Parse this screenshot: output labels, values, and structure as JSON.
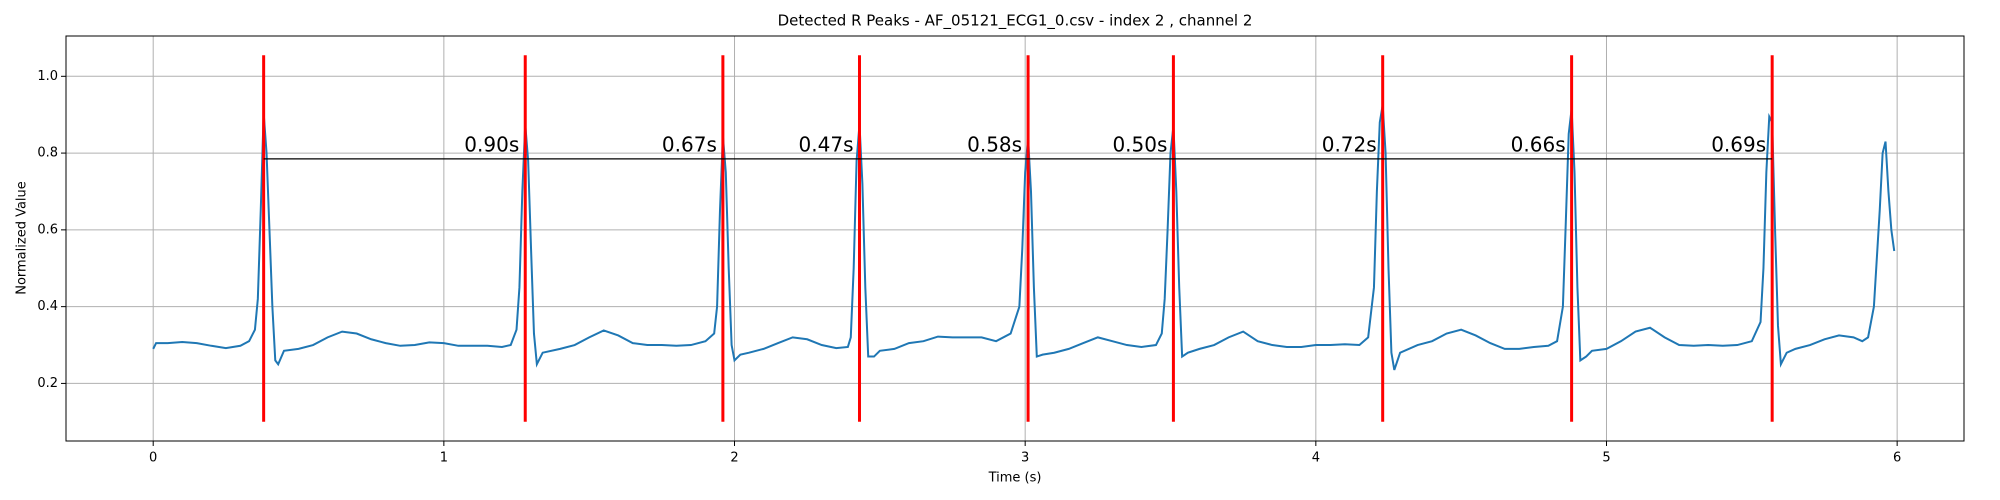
{
  "chart_data": {
    "type": "line",
    "title": "Detected R Peaks - AF_05121_ECG1_0.csv - index 2 , channel 2",
    "xlabel": "Time (s)",
    "ylabel": "Normalized Value",
    "color": "#1f77b4",
    "grid": true,
    "xlim": [
      -0.3,
      6.23
    ],
    "ylim": [
      0.05,
      1.105
    ],
    "xticks": [
      0,
      1,
      2,
      3,
      4,
      5,
      6
    ],
    "yticks": [
      0.2,
      0.4,
      0.6,
      0.8,
      {
        "value": 1,
        "label": "1.0"
      }
    ],
    "x": [
      0,
      0.01,
      0.05,
      0.1,
      0.15,
      0.2,
      0.25,
      0.3,
      0.33,
      0.35,
      0.36,
      0.37,
      0.38,
      0.39,
      0.4,
      0.41,
      0.42,
      0.43,
      0.45,
      0.5,
      0.55,
      0.6,
      0.65,
      0.7,
      0.75,
      0.8,
      0.85,
      0.9,
      0.95,
      1.0,
      1.05,
      1.1,
      1.15,
      1.2,
      1.23,
      1.25,
      1.26,
      1.27,
      1.28,
      1.29,
      1.3,
      1.31,
      1.32,
      1.34,
      1.4,
      1.45,
      1.5,
      1.55,
      1.6,
      1.65,
      1.7,
      1.75,
      1.8,
      1.85,
      1.9,
      1.93,
      1.94,
      1.95,
      1.96,
      1.97,
      1.98,
      1.99,
      2.0,
      2.02,
      2.05,
      2.1,
      2.15,
      2.2,
      2.25,
      2.3,
      2.35,
      2.39,
      2.4,
      2.41,
      2.42,
      2.43,
      2.44,
      2.45,
      2.46,
      2.48,
      2.5,
      2.55,
      2.6,
      2.65,
      2.7,
      2.75,
      2.8,
      2.85,
      2.9,
      2.95,
      2.98,
      2.99,
      3.0,
      3.01,
      3.02,
      3.03,
      3.04,
      3.06,
      3.1,
      3.15,
      3.2,
      3.25,
      3.3,
      3.35,
      3.4,
      3.45,
      3.47,
      3.48,
      3.49,
      3.5,
      3.51,
      3.52,
      3.53,
      3.54,
      3.56,
      3.6,
      3.65,
      3.7,
      3.75,
      3.8,
      3.85,
      3.9,
      3.95,
      4.0,
      4.05,
      4.1,
      4.15,
      4.18,
      4.2,
      4.21,
      4.22,
      4.23,
      4.24,
      4.25,
      4.26,
      4.27,
      4.29,
      4.35,
      4.4,
      4.45,
      4.5,
      4.55,
      4.6,
      4.65,
      4.7,
      4.75,
      4.8,
      4.83,
      4.85,
      4.86,
      4.87,
      4.88,
      4.89,
      4.9,
      4.91,
      4.93,
      4.95,
      5.0,
      5.05,
      5.1,
      5.15,
      5.2,
      5.25,
      5.3,
      5.35,
      5.4,
      5.45,
      5.5,
      5.53,
      5.54,
      5.55,
      5.56,
      5.57,
      5.58,
      5.59,
      5.6,
      5.62,
      5.65,
      5.7,
      5.75,
      5.8,
      5.85,
      5.88,
      5.9,
      5.92,
      5.94,
      5.95,
      5.96,
      5.97,
      5.98,
      5.99
    ],
    "values": [
      0.29,
      0.305,
      0.305,
      0.308,
      0.305,
      0.298,
      0.292,
      0.298,
      0.31,
      0.34,
      0.42,
      0.65,
      0.905,
      0.8,
      0.6,
      0.4,
      0.26,
      0.25,
      0.285,
      0.29,
      0.3,
      0.32,
      0.335,
      0.33,
      0.315,
      0.305,
      0.298,
      0.3,
      0.307,
      0.305,
      0.298,
      0.298,
      0.298,
      0.295,
      0.3,
      0.34,
      0.45,
      0.7,
      0.875,
      0.78,
      0.55,
      0.33,
      0.25,
      0.28,
      0.29,
      0.3,
      0.32,
      0.338,
      0.325,
      0.305,
      0.3,
      0.3,
      0.298,
      0.3,
      0.31,
      0.33,
      0.4,
      0.65,
      0.845,
      0.75,
      0.5,
      0.3,
      0.26,
      0.275,
      0.28,
      0.29,
      0.305,
      0.32,
      0.315,
      0.3,
      0.292,
      0.295,
      0.32,
      0.5,
      0.78,
      0.875,
      0.72,
      0.45,
      0.27,
      0.27,
      0.285,
      0.29,
      0.305,
      0.31,
      0.322,
      0.32,
      0.32,
      0.32,
      0.31,
      0.33,
      0.4,
      0.55,
      0.75,
      0.84,
      0.7,
      0.45,
      0.27,
      0.275,
      0.28,
      0.29,
      0.305,
      0.32,
      0.31,
      0.3,
      0.295,
      0.3,
      0.33,
      0.42,
      0.6,
      0.8,
      0.87,
      0.7,
      0.45,
      0.27,
      0.28,
      0.29,
      0.3,
      0.32,
      0.335,
      0.31,
      0.3,
      0.295,
      0.295,
      0.3,
      0.3,
      0.302,
      0.3,
      0.32,
      0.45,
      0.7,
      0.88,
      0.925,
      0.8,
      0.5,
      0.28,
      0.235,
      0.28,
      0.3,
      0.31,
      0.33,
      0.34,
      0.325,
      0.305,
      0.29,
      0.29,
      0.295,
      0.298,
      0.31,
      0.4,
      0.62,
      0.85,
      0.915,
      0.75,
      0.45,
      0.26,
      0.27,
      0.285,
      0.29,
      0.31,
      0.335,
      0.345,
      0.32,
      0.3,
      0.298,
      0.3,
      0.298,
      0.3,
      0.31,
      0.36,
      0.5,
      0.75,
      0.895,
      0.88,
      0.6,
      0.35,
      0.25,
      0.28,
      0.29,
      0.3,
      0.315,
      0.325,
      0.32,
      0.31,
      0.32,
      0.4,
      0.65,
      0.8,
      0.83,
      0.7,
      0.6,
      0.545
    ],
    "r_peaks": {
      "x": [
        0.38,
        1.28,
        1.96,
        2.43,
        3.01,
        3.51,
        4.23,
        4.88,
        5.57
      ],
      "ymin": 0.1,
      "ymax": 1.055,
      "color": "#ff0000"
    },
    "intervals": {
      "labels": [
        "0.90s",
        "0.67s",
        "0.47s",
        "0.58s",
        "0.50s",
        "0.72s",
        "0.66s",
        "0.69s"
      ],
      "y": 0.785,
      "color": "#000000"
    }
  }
}
